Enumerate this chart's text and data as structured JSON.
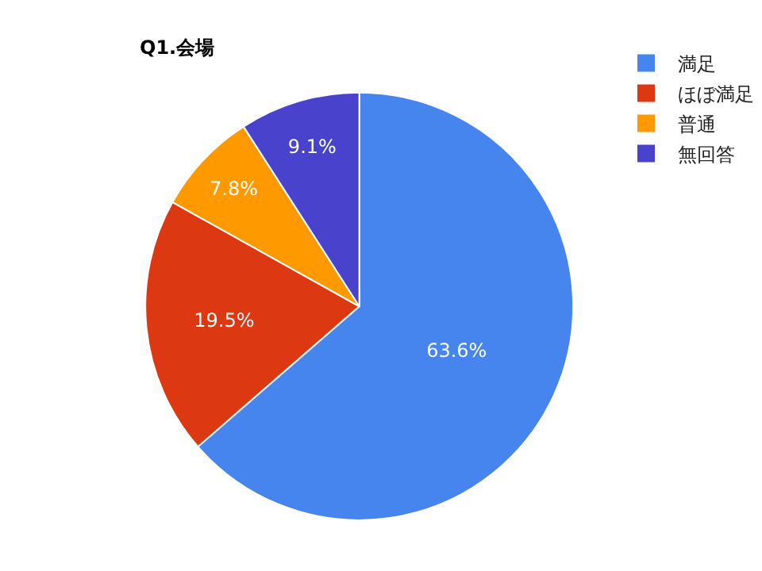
{
  "chart_data": {
    "type": "pie",
    "title": "Q1.会場",
    "categories": [
      "満足",
      "ほぼ満足",
      "普通",
      "無回答"
    ],
    "values": [
      63.6,
      19.5,
      7.8,
      9.1
    ],
    "value_labels": [
      "63.6%",
      "19.5%",
      "7.8%",
      "9.1%"
    ],
    "colors": [
      "#4684ee",
      "#dc3912",
      "#ff9900",
      "#4942cc"
    ],
    "legend": "top right"
  }
}
